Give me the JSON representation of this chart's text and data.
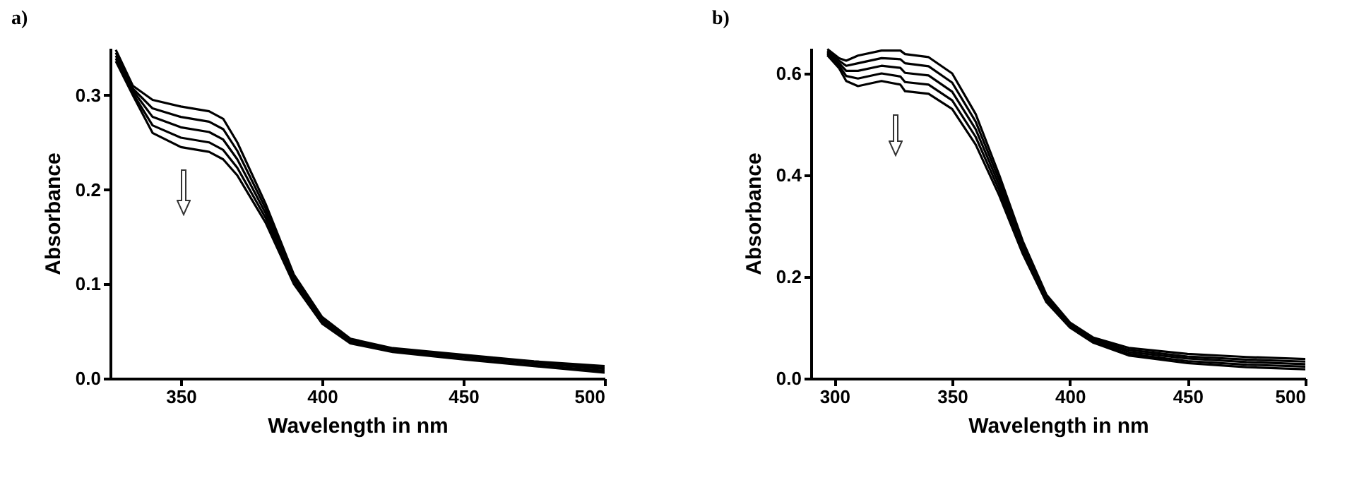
{
  "chart_data": [
    {
      "type": "line",
      "title": "a)",
      "xlabel": "Wavelength in nm",
      "ylabel": "Absorbance",
      "xlim": [
        325,
        500
      ],
      "ylim": [
        0,
        0.35
      ],
      "xticks": [
        350,
        400,
        450,
        500
      ],
      "yticks": [
        {
          "value": 0,
          "label": "0.0"
        },
        0.1,
        0.2,
        0.3
      ],
      "x": [
        327,
        333,
        340,
        350,
        360,
        365,
        370,
        380,
        390,
        400,
        410,
        425,
        450,
        475,
        500
      ],
      "series": [
        {
          "color": "#000000",
          "values": [
            0.348,
            0.31,
            0.295,
            0.288,
            0.283,
            0.275,
            0.25,
            0.185,
            0.11,
            0.065,
            0.042,
            0.032,
            0.025,
            0.018,
            0.013
          ]
        },
        {
          "color": "#000000",
          "values": [
            0.345,
            0.307,
            0.286,
            0.277,
            0.272,
            0.264,
            0.241,
            0.18,
            0.107,
            0.063,
            0.041,
            0.031,
            0.024,
            0.017,
            0.011
          ]
        },
        {
          "color": "#000000",
          "values": [
            0.342,
            0.305,
            0.277,
            0.266,
            0.261,
            0.253,
            0.232,
            0.175,
            0.105,
            0.061,
            0.04,
            0.03,
            0.023,
            0.016,
            0.01
          ]
        },
        {
          "color": "#000000",
          "values": [
            0.339,
            0.302,
            0.268,
            0.255,
            0.25,
            0.242,
            0.223,
            0.17,
            0.102,
            0.06,
            0.038,
            0.029,
            0.021,
            0.014,
            0.008
          ]
        },
        {
          "color": "#000000",
          "values": [
            0.336,
            0.3,
            0.26,
            0.245,
            0.24,
            0.232,
            0.215,
            0.165,
            0.1,
            0.058,
            0.037,
            0.028,
            0.02,
            0.013,
            0.006
          ]
        }
      ]
    },
    {
      "type": "line",
      "title": "b)",
      "xlabel": "Wavelength in nm",
      "ylabel": "Absorbance",
      "xlim": [
        290,
        500
      ],
      "ylim": [
        0,
        0.65
      ],
      "xticks": [
        300,
        350,
        400,
        450,
        500
      ],
      "yticks": [
        {
          "value": 0,
          "label": "0.0"
        },
        0.2,
        0.4,
        0.6
      ],
      "x": [
        297,
        302,
        305,
        310,
        320,
        328,
        330,
        340,
        350,
        360,
        370,
        380,
        390,
        400,
        410,
        425,
        450,
        475,
        500
      ],
      "series": [
        {
          "color": "#000000",
          "values": [
            0.648,
            0.63,
            0.625,
            0.635,
            0.645,
            0.645,
            0.638,
            0.632,
            0.6,
            0.52,
            0.4,
            0.27,
            0.165,
            0.11,
            0.08,
            0.06,
            0.048,
            0.042,
            0.038
          ]
        },
        {
          "color": "#000000",
          "values": [
            0.645,
            0.625,
            0.615,
            0.62,
            0.63,
            0.628,
            0.62,
            0.614,
            0.582,
            0.505,
            0.39,
            0.264,
            0.161,
            0.107,
            0.077,
            0.056,
            0.043,
            0.037,
            0.033
          ]
        },
        {
          "color": "#000000",
          "values": [
            0.642,
            0.62,
            0.605,
            0.605,
            0.615,
            0.611,
            0.601,
            0.596,
            0.564,
            0.49,
            0.38,
            0.258,
            0.157,
            0.105,
            0.075,
            0.052,
            0.039,
            0.032,
            0.028
          ]
        },
        {
          "color": "#000000",
          "values": [
            0.639,
            0.615,
            0.595,
            0.59,
            0.6,
            0.594,
            0.583,
            0.578,
            0.547,
            0.475,
            0.37,
            0.251,
            0.153,
            0.102,
            0.072,
            0.048,
            0.034,
            0.027,
            0.023
          ]
        },
        {
          "color": "#000000",
          "values": [
            0.636,
            0.61,
            0.585,
            0.575,
            0.585,
            0.578,
            0.565,
            0.56,
            0.53,
            0.46,
            0.36,
            0.245,
            0.15,
            0.1,
            0.07,
            0.045,
            0.03,
            0.022,
            0.018
          ]
        }
      ]
    }
  ]
}
